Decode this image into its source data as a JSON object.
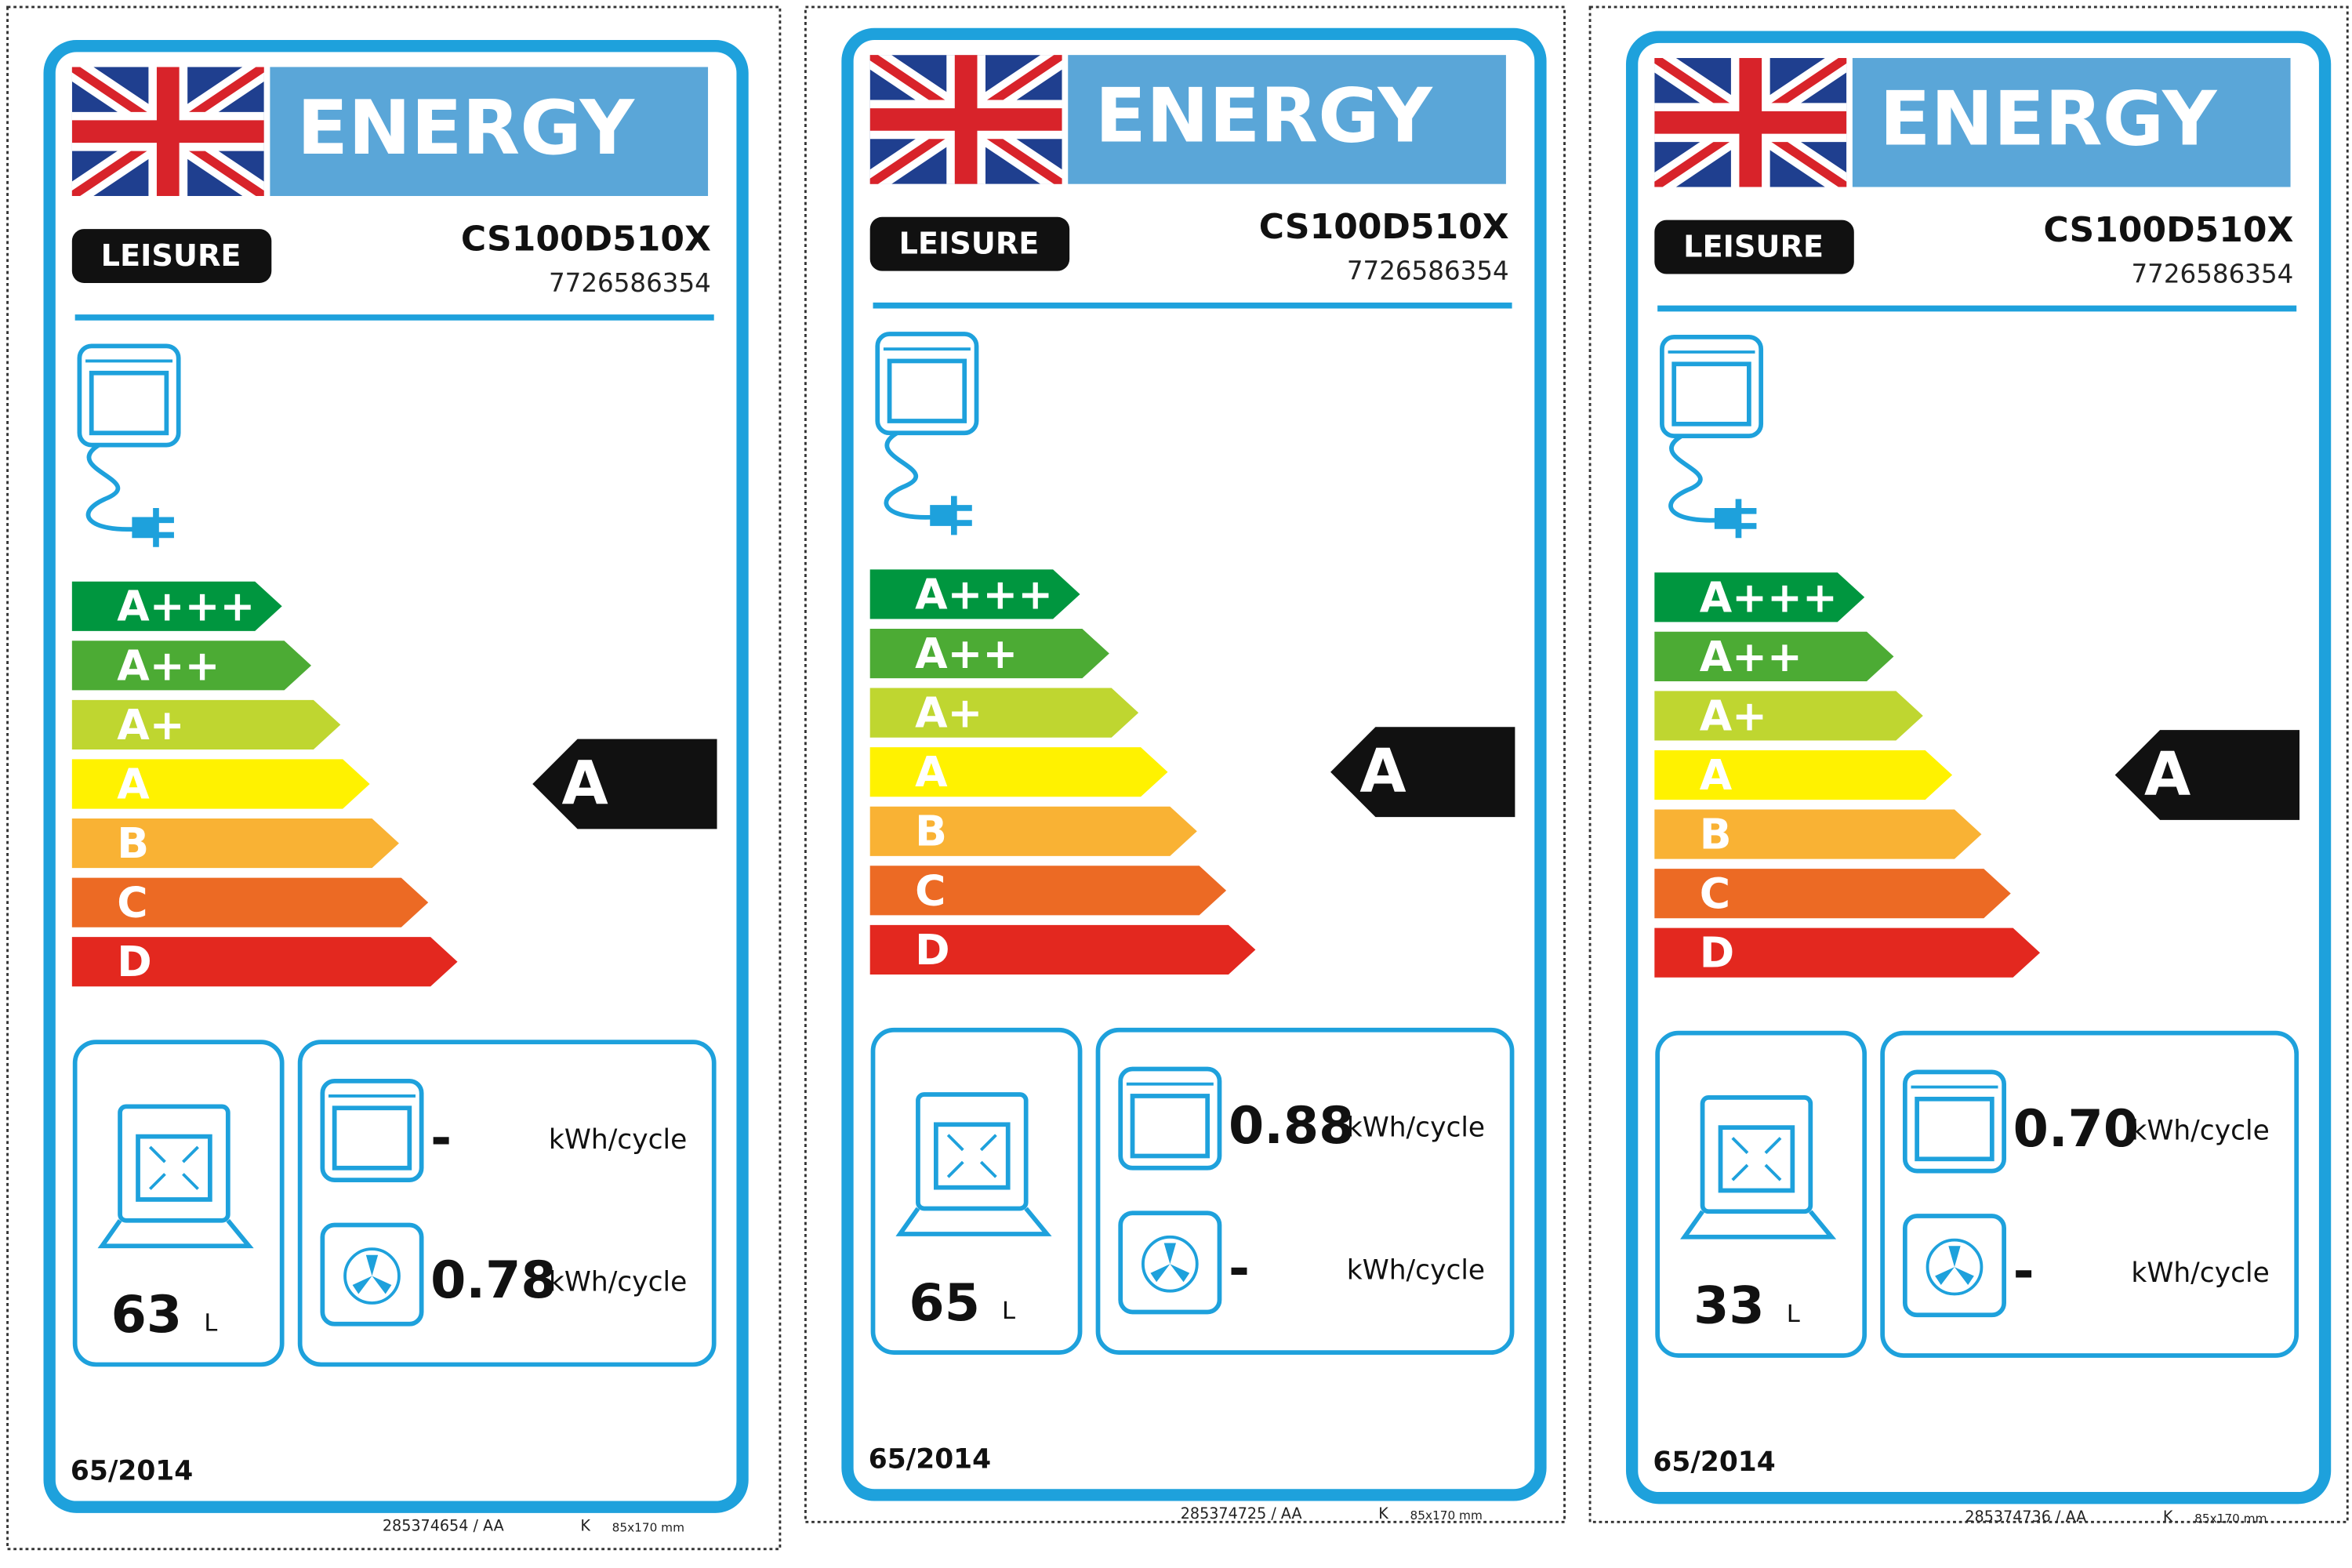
{
  "energy_classes": [
    "A+++",
    "A++",
    "A+",
    "A",
    "B",
    "C",
    "D"
  ],
  "labels": [
    {
      "header": "ENERGY",
      "brand": "LEISURE",
      "model": "CS100D510X",
      "code": "7726586354",
      "rating": "A",
      "volume": "63",
      "volume_unit": "L",
      "conventional_energy": "-",
      "fan_energy": "0.78",
      "energy_unit": "kWh/cycle",
      "regulation": "65/2014",
      "footer_code": "285374654 / AA",
      "footer_letter": "K",
      "footer_size": "85x170 mm"
    },
    {
      "header": "ENERGY",
      "brand": "LEISURE",
      "model": "CS100D510X",
      "code": "7726586354",
      "rating": "A",
      "volume": "65",
      "volume_unit": "L",
      "conventional_energy": "0.88",
      "fan_energy": "-",
      "energy_unit": "kWh/cycle",
      "regulation": "65/2014",
      "footer_code": "285374725 / AA",
      "footer_letter": "K",
      "footer_size": "85x170 mm"
    },
    {
      "header": "ENERGY",
      "brand": "LEISURE",
      "model": "CS100D510X",
      "code": "7726586354",
      "rating": "A",
      "volume": "33",
      "volume_unit": "L",
      "conventional_energy": "0.70",
      "fan_energy": "-",
      "energy_unit": "kWh/cycle",
      "regulation": "65/2014",
      "footer_code": "285374736 / AA",
      "footer_letter": "K",
      "footer_size": "85x170 mm"
    }
  ]
}
